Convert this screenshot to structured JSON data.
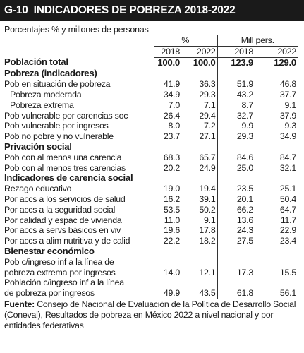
{
  "header": {
    "code": "G-10",
    "title": "INDICADORES DE POBREZA 2018-2022"
  },
  "subtitle": "Porcentajes % y millones de personas",
  "columns": {
    "group_pct": "%",
    "group_mill": "Mill pers.",
    "years": [
      "2018",
      "2022",
      "2018",
      "2022"
    ]
  },
  "rows": [
    {
      "type": "total",
      "label": "Población total",
      "values": [
        "100.0",
        "100.0",
        "123.9",
        "129.0"
      ]
    },
    {
      "type": "section",
      "label": "Pobreza (indicadores)"
    },
    {
      "type": "row",
      "label": "Pob en situación de pobreza",
      "values": [
        "41.9",
        "36.3",
        "51.9",
        "46.8"
      ]
    },
    {
      "type": "indent",
      "label": "Pobreza moderada",
      "values": [
        "34.9",
        "29.3",
        "43.2",
        "37.7"
      ]
    },
    {
      "type": "indent",
      "label": "Pobreza extrema",
      "values": [
        "7.0",
        "7.1",
        "8.7",
        "9.1"
      ]
    },
    {
      "type": "row",
      "label": "Pob vulnerable por carencias soc",
      "values": [
        "26.4",
        "29.4",
        "32.7",
        "37.9"
      ]
    },
    {
      "type": "row",
      "label": "Pob vulnerable por ingresos",
      "values": [
        "8.0",
        "7.2",
        "9.9",
        "9.3"
      ]
    },
    {
      "type": "row",
      "label": "Pob no pobre y no vulnerable",
      "values": [
        "23.7",
        "27.1",
        "29.3",
        "34.9"
      ]
    },
    {
      "type": "section",
      "label": "Privación social"
    },
    {
      "type": "row",
      "label": "Pob con al menos una carencia",
      "values": [
        "68.3",
        "65.7",
        "84.6",
        "84.7"
      ]
    },
    {
      "type": "row",
      "label": "Pob con al menos tres carencias",
      "values": [
        "20.2",
        "24.9",
        "25.0",
        "32.1"
      ]
    },
    {
      "type": "section",
      "label": "Indicadores de carencia social"
    },
    {
      "type": "row",
      "label": "Rezago educativo",
      "values": [
        "19.0",
        "19.4",
        "23.5",
        "25.1"
      ]
    },
    {
      "type": "row",
      "label": "Por accs a los servicios de salud",
      "values": [
        "16.2",
        "39.1",
        "20.1",
        "50.4"
      ]
    },
    {
      "type": "row",
      "label": "Por accs a la seguridad social",
      "values": [
        "53.5",
        "50.2",
        "66.2",
        "64.7"
      ]
    },
    {
      "type": "row",
      "label": "Por calidad y espac de vivienda",
      "values": [
        "11.0",
        "9.1",
        "13.6",
        "11.7"
      ]
    },
    {
      "type": "row",
      "label": "Por accs a servs básicos en viv",
      "values": [
        "19.6",
        "17.8",
        "24.3",
        "22.9"
      ]
    },
    {
      "type": "row",
      "label": "Por accs a alim nutritiva y de calid",
      "values": [
        "22.2",
        "18.2",
        "27.5",
        "23.4"
      ]
    },
    {
      "type": "section",
      "label": "Bienestar económico"
    },
    {
      "type": "row2a",
      "label": "Pob c/ingreso inf a la línea de"
    },
    {
      "type": "row2b",
      "label": "pobreza extrema por ingresos",
      "values": [
        "14.0",
        "12.1",
        "17.3",
        "15.5"
      ]
    },
    {
      "type": "row2a",
      "label": "Población c/ingreso inf a la línea"
    },
    {
      "type": "row2b",
      "label": "de pobreza por ingresos",
      "values": [
        "49.9",
        "43.5",
        "61.8",
        "56.1"
      ]
    }
  ],
  "source": {
    "label": "Fuente:",
    "text": "Consejo de Nacional de Evaluación de la Política de Desarrollo Social (Coneval), Resultados de pobreza en México 2022 a nivel nacional y por entidades federativas"
  }
}
